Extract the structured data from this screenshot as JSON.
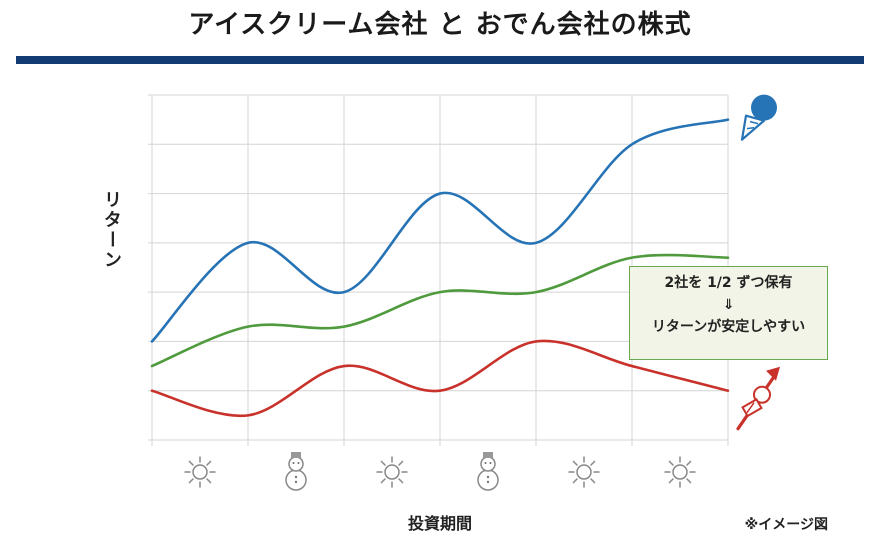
{
  "title": "アイスクリーム会社 と おでん会社の株式",
  "chart_data": {
    "type": "line",
    "xlabel": "投資期間",
    "ylabel": "リターン",
    "grid": true,
    "x": [
      0,
      1,
      2,
      3,
      4,
      5,
      6
    ],
    "ylim": [
      0,
      7
    ],
    "x_tick_icons": [
      "sun-icon",
      "snowman-icon",
      "sun-icon",
      "snowman-icon",
      "sun-icon",
      "sun-icon"
    ],
    "series": [
      {
        "icon": "ice-cream-icon",
        "color": "#2673b5",
        "values": [
          2.0,
          4.0,
          3.0,
          5.0,
          4.0,
          6.0,
          6.5
        ]
      },
      {
        "color": "#4e9a3c",
        "values": [
          1.5,
          2.3,
          2.3,
          3.0,
          3.0,
          3.7,
          3.7
        ]
      },
      {
        "icon": "oden-icon",
        "color": "#c9322b",
        "values": [
          1.0,
          0.5,
          1.5,
          1.0,
          2.0,
          1.5,
          1.0
        ]
      }
    ],
    "annotation": {
      "lines": [
        "2社を 1/2 ずつ保有",
        "⇓",
        "リターンが安定しやすい"
      ],
      "border_color": "#6aa84f"
    },
    "note": "※イメージ図"
  }
}
